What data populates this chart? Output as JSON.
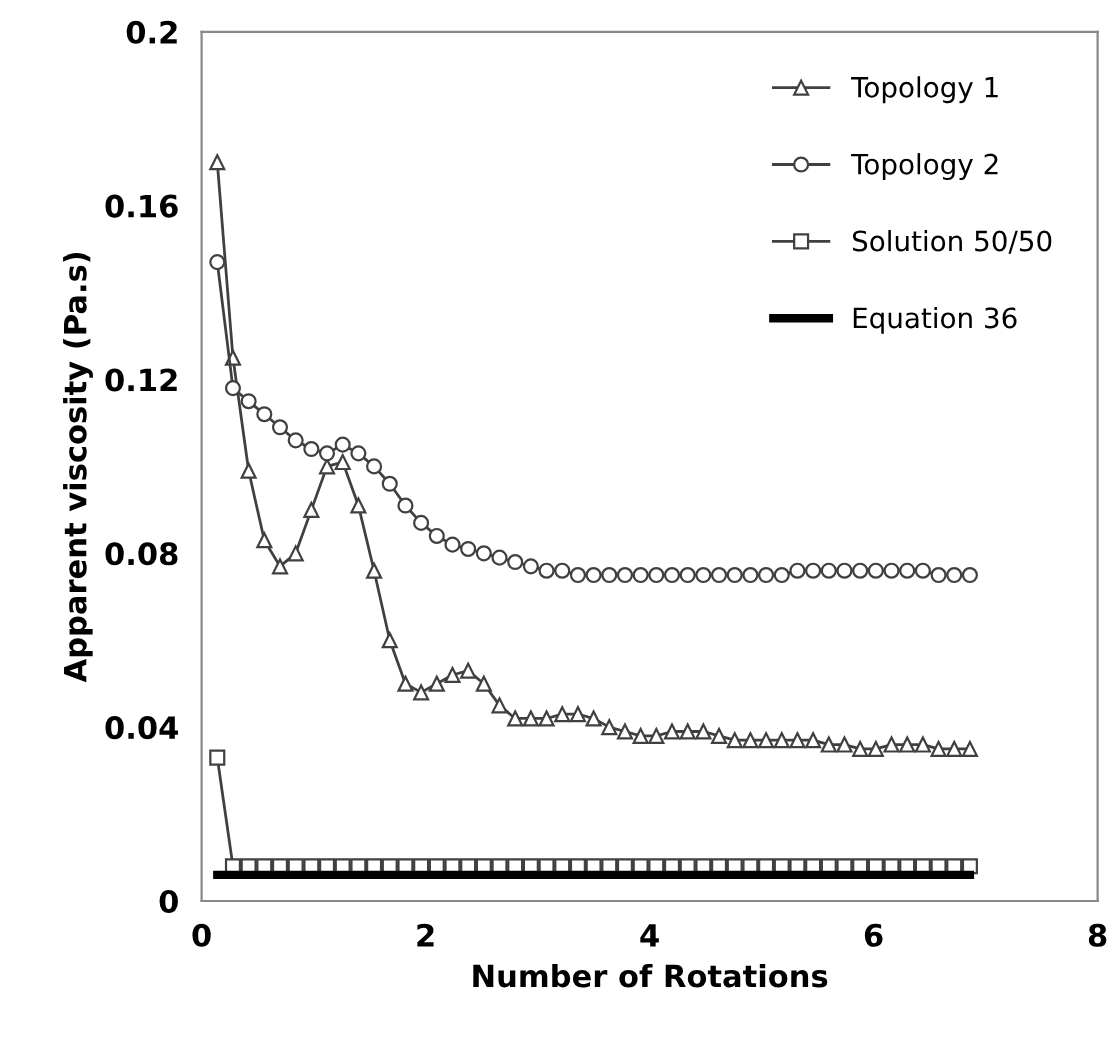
{
  "chart_data": {
    "type": "line",
    "xlabel": "Number of Rotations",
    "ylabel": "Apparent viscosity (Pa.s)",
    "x": [
      0.14,
      0.28,
      0.42,
      0.56,
      0.7,
      0.84,
      0.98,
      1.12,
      1.26,
      1.4,
      1.54,
      1.68,
      1.82,
      1.96,
      2.1,
      2.24,
      2.38,
      2.52,
      2.66,
      2.8,
      2.94,
      3.08,
      3.22,
      3.36,
      3.5,
      3.64,
      3.78,
      3.92,
      4.06,
      4.2,
      4.34,
      4.48,
      4.62,
      4.76,
      4.9,
      5.04,
      5.18,
      5.32,
      5.46,
      5.6,
      5.74,
      5.88,
      6.02,
      6.16,
      6.3,
      6.44,
      6.58,
      6.72,
      6.86
    ],
    "series": [
      {
        "name": "Topology 1",
        "color": "#404040",
        "marker": "triangle",
        "values": [
          0.17,
          0.125,
          0.099,
          0.083,
          0.077,
          0.08,
          0.09,
          0.1,
          0.101,
          0.091,
          0.076,
          0.06,
          0.05,
          0.048,
          0.05,
          0.052,
          0.053,
          0.05,
          0.045,
          0.042,
          0.042,
          0.042,
          0.043,
          0.043,
          0.042,
          0.04,
          0.039,
          0.038,
          0.038,
          0.039,
          0.039,
          0.039,
          0.038,
          0.037,
          0.037,
          0.037,
          0.037,
          0.037,
          0.037,
          0.036,
          0.036,
          0.035,
          0.035,
          0.036,
          0.036,
          0.036,
          0.035,
          0.035,
          0.035
        ]
      },
      {
        "name": "Topology 2",
        "color": "#404040",
        "marker": "circle",
        "values": [
          0.147,
          0.118,
          0.115,
          0.112,
          0.109,
          0.106,
          0.104,
          0.103,
          0.105,
          0.103,
          0.1,
          0.096,
          0.091,
          0.087,
          0.084,
          0.082,
          0.081,
          0.08,
          0.079,
          0.078,
          0.077,
          0.076,
          0.076,
          0.075,
          0.075,
          0.075,
          0.075,
          0.075,
          0.075,
          0.075,
          0.075,
          0.075,
          0.075,
          0.075,
          0.075,
          0.075,
          0.075,
          0.076,
          0.076,
          0.076,
          0.076,
          0.076,
          0.076,
          0.076,
          0.076,
          0.076,
          0.075,
          0.075,
          0.075
        ]
      },
      {
        "name": "Solution 50/50",
        "color": "#404040",
        "marker": "square",
        "values": [
          0.033,
          0.008,
          0.008,
          0.008,
          0.008,
          0.008,
          0.008,
          0.008,
          0.008,
          0.008,
          0.008,
          0.008,
          0.008,
          0.008,
          0.008,
          0.008,
          0.008,
          0.008,
          0.008,
          0.008,
          0.008,
          0.008,
          0.008,
          0.008,
          0.008,
          0.008,
          0.008,
          0.008,
          0.008,
          0.008,
          0.008,
          0.008,
          0.008,
          0.008,
          0.008,
          0.008,
          0.008,
          0.008,
          0.008,
          0.008,
          0.008,
          0.008,
          0.008,
          0.008,
          0.008,
          0.008,
          0.008,
          0.008,
          0.008
        ]
      },
      {
        "name": "Equation 36",
        "color": "#000000",
        "marker": "none",
        "x": [
          0.14,
          6.86
        ],
        "values": [
          0.006,
          0.006
        ]
      }
    ],
    "xlim": [
      0,
      8
    ],
    "xticks": [
      0,
      2,
      4,
      6,
      8
    ],
    "ylim": [
      0,
      0.2
    ],
    "yticks": [
      0,
      0.04,
      0.08,
      0.12,
      0.16,
      0.2
    ],
    "grid": false,
    "legend": "top right"
  }
}
